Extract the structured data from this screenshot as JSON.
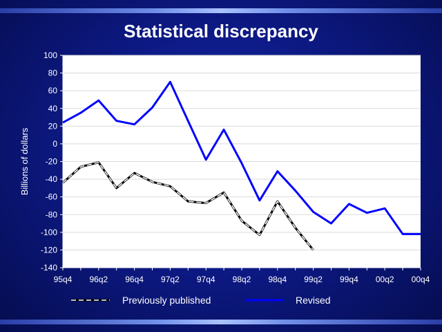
{
  "title": "Statistical discrepancy",
  "chart_data": {
    "type": "line",
    "ylabel": "Billions of dollars",
    "xlabel": "",
    "ylim": [
      -140,
      100
    ],
    "yticks": [
      100,
      80,
      60,
      40,
      20,
      0,
      -20,
      -40,
      -60,
      -80,
      -100,
      -120,
      -140
    ],
    "x": [
      "95q4",
      "96q1",
      "96q2",
      "96q3",
      "96q4",
      "97q1",
      "97q2",
      "97q3",
      "97q4",
      "98q1",
      "98q2",
      "98q3",
      "98q4",
      "99q1",
      "99q2",
      "99q3",
      "99q4",
      "00q1",
      "00q2",
      "00q3",
      "00q4"
    ],
    "xtick_labels": [
      "95q4",
      "96q2",
      "96q4",
      "97q2",
      "97q4",
      "98q2",
      "98q4",
      "99q2",
      "99q4",
      "00q2",
      "00q4"
    ],
    "grid": true,
    "legend_position": "bottom",
    "series": [
      {
        "name": "Previously published",
        "color": "#ffffff",
        "style": "dashed",
        "values": [
          -44,
          -26,
          -21,
          -50,
          -33,
          -43,
          -48,
          -65,
          -67,
          -55,
          -87,
          -103,
          -65,
          -95,
          -120,
          null,
          null,
          null,
          null,
          null,
          null
        ]
      },
      {
        "name": "Revised",
        "color": "#0000ff",
        "style": "solid",
        "values": [
          24,
          35,
          49,
          26,
          22,
          41,
          70,
          26,
          -18,
          16,
          -22,
          -64,
          -31,
          -53,
          -77,
          -90,
          -68,
          -78,
          -73,
          -102,
          -102
        ]
      }
    ]
  }
}
